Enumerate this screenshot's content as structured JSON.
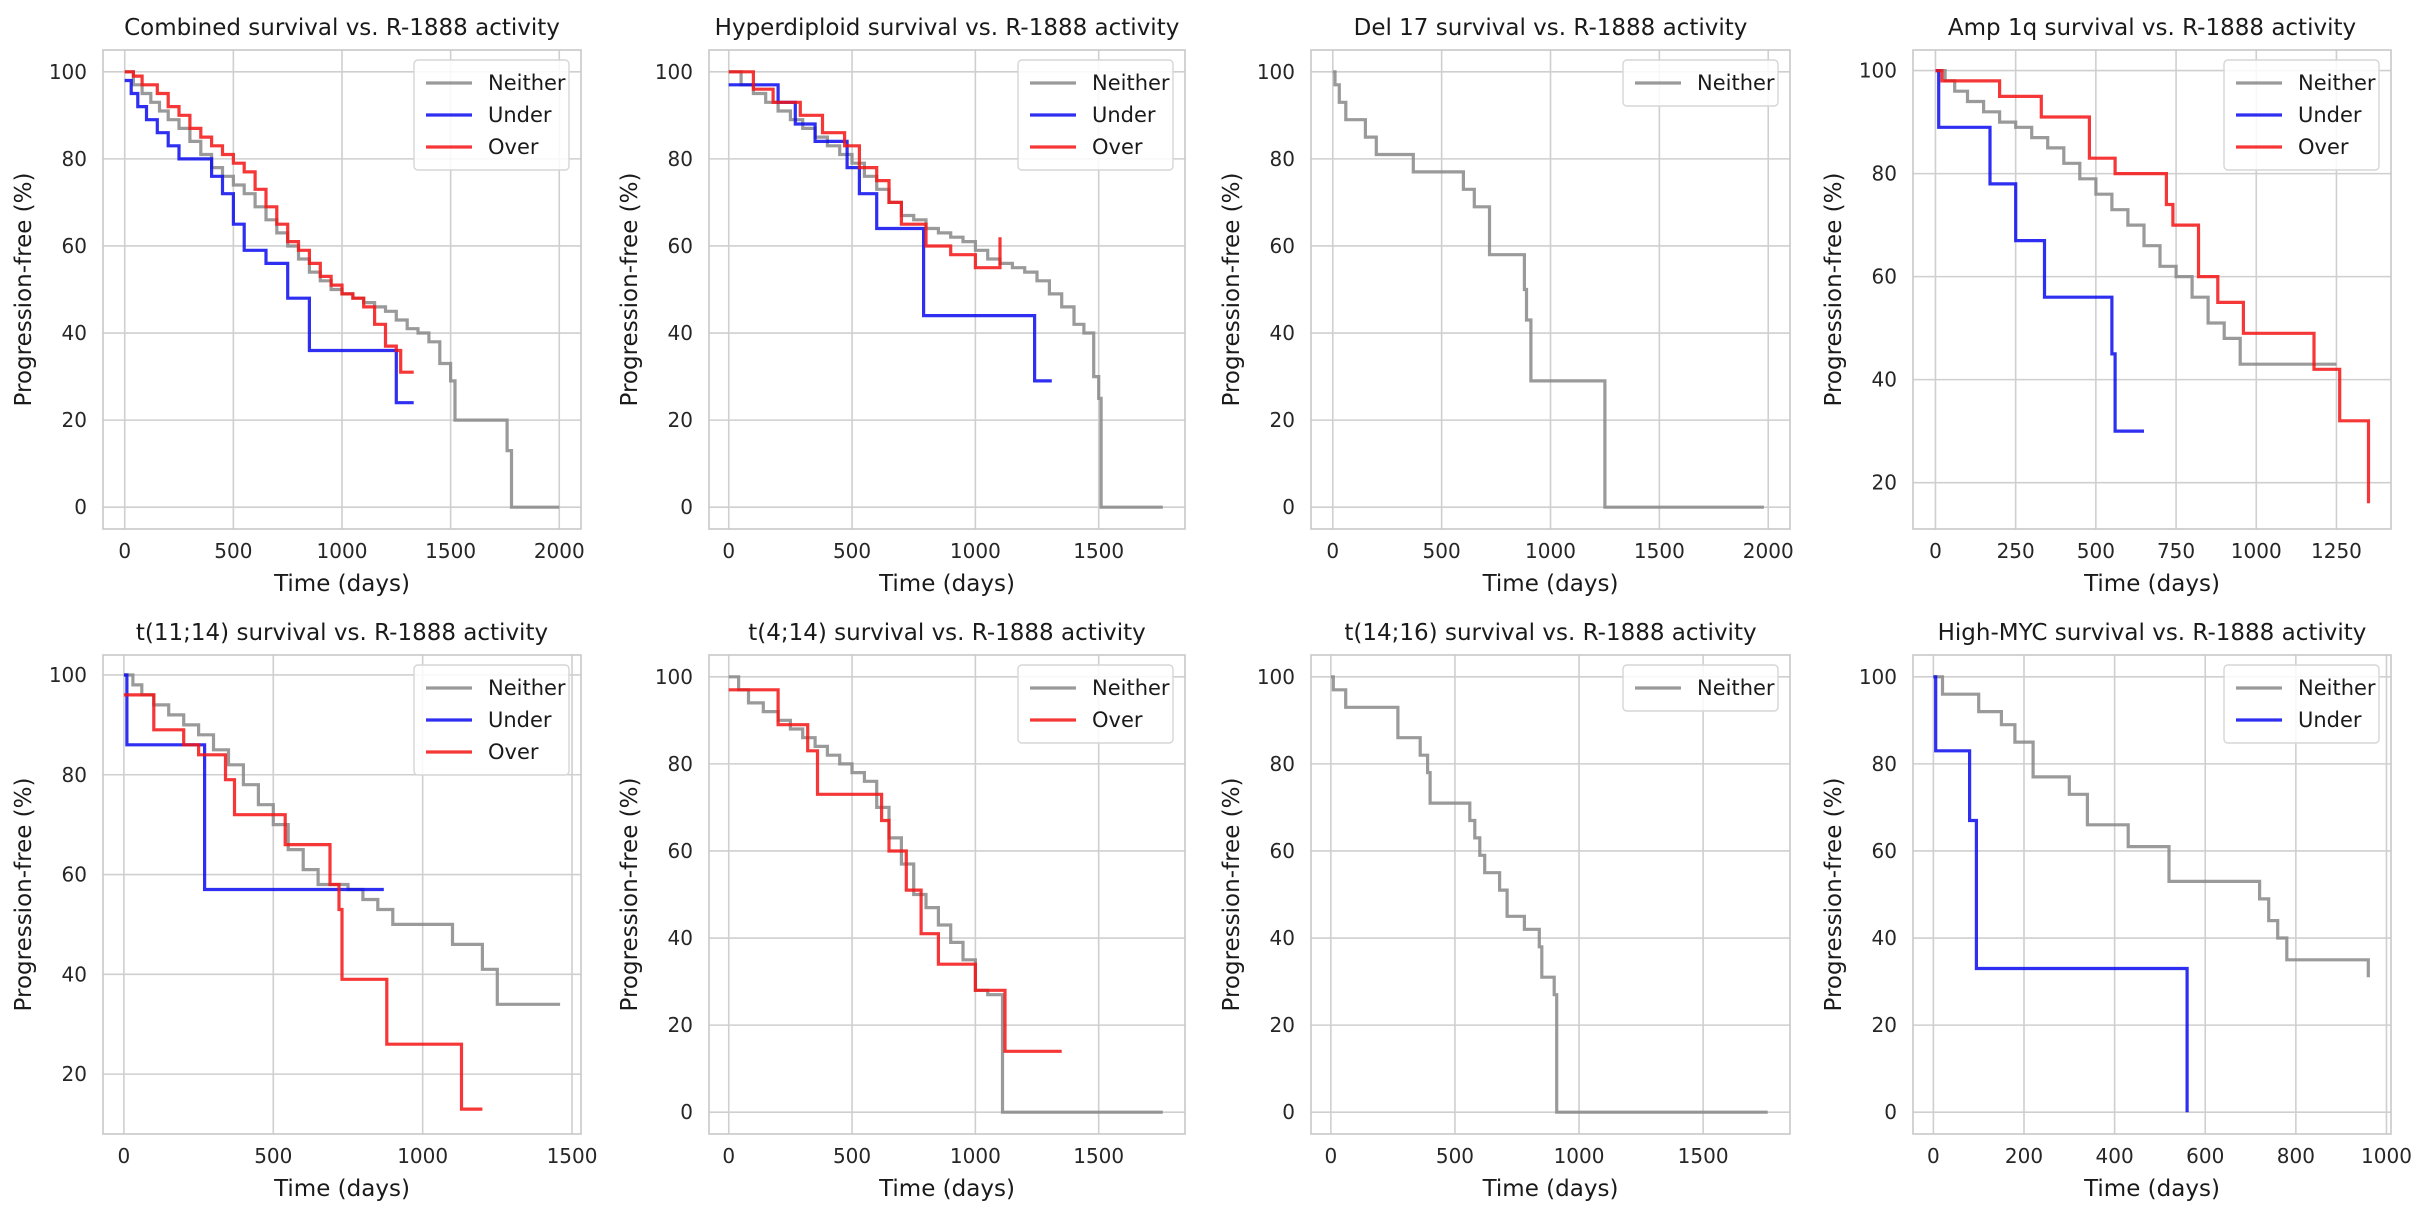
{
  "colors": {
    "Neither": "#888888",
    "Under": "#0a0af0",
    "Over": "#f51414"
  },
  "chart_data": [
    {
      "type": "line",
      "title": "Combined survival vs. R-1888 activity",
      "xlabel": "Time (days)",
      "ylabel": "Progression-free (%)",
      "xlim": [
        -100,
        2100
      ],
      "ylim": [
        -5,
        105
      ],
      "xticks": [
        0,
        500,
        1000,
        1500,
        2000
      ],
      "yticks": [
        0,
        20,
        40,
        60,
        80,
        100
      ],
      "legend": [
        "Neither",
        "Under",
        "Over"
      ],
      "series": [
        {
          "name": "Neither",
          "x": [
            0,
            40,
            80,
            120,
            160,
            200,
            250,
            300,
            350,
            400,
            450,
            500,
            550,
            600,
            650,
            700,
            750,
            800,
            850,
            900,
            950,
            1000,
            1050,
            1100,
            1150,
            1200,
            1250,
            1300,
            1350,
            1400,
            1450,
            1500,
            1520,
            1760,
            1780,
            2000
          ],
          "y": [
            100,
            97,
            95,
            93,
            91,
            89,
            87,
            84,
            81,
            78,
            76,
            74,
            72,
            69,
            66,
            63,
            60,
            57,
            54,
            52,
            50,
            49,
            48,
            47,
            46,
            45,
            43,
            41,
            40,
            38,
            33,
            29,
            20,
            13,
            0,
            0
          ]
        },
        {
          "name": "Under",
          "x": [
            0,
            30,
            60,
            100,
            150,
            200,
            250,
            300,
            400,
            450,
            500,
            550,
            650,
            750,
            850,
            1250,
            1330
          ],
          "y": [
            98,
            95,
            92,
            89,
            86,
            83,
            80,
            80,
            76,
            72,
            65,
            59,
            56,
            48,
            36,
            24,
            24
          ]
        },
        {
          "name": "Over",
          "x": [
            0,
            40,
            80,
            150,
            200,
            250,
            300,
            350,
            400,
            450,
            500,
            550,
            600,
            650,
            700,
            750,
            800,
            850,
            900,
            950,
            1000,
            1050,
            1100,
            1150,
            1200,
            1250,
            1270,
            1330
          ],
          "y": [
            100,
            99,
            97,
            95,
            92,
            90,
            87,
            85,
            83,
            81,
            79,
            77,
            73,
            69,
            65,
            61,
            59,
            56,
            53,
            51,
            49,
            48,
            46,
            42,
            37,
            36,
            31,
            31
          ]
        }
      ]
    },
    {
      "type": "line",
      "title": "Hyperdiploid survival vs. R-1888 activity",
      "xlabel": "Time (days)",
      "ylabel": "Progression-free (%)",
      "xlim": [
        -80,
        1850
      ],
      "ylim": [
        -5,
        105
      ],
      "xticks": [
        0,
        500,
        1000,
        1500
      ],
      "yticks": [
        0,
        20,
        40,
        60,
        80,
        100
      ],
      "legend": [
        "Neither",
        "Under",
        "Over"
      ],
      "series": [
        {
          "name": "Neither",
          "x": [
            0,
            50,
            100,
            150,
            200,
            250,
            300,
            350,
            400,
            450,
            500,
            550,
            600,
            650,
            700,
            750,
            800,
            850,
            900,
            950,
            1000,
            1050,
            1100,
            1150,
            1200,
            1250,
            1300,
            1350,
            1400,
            1440,
            1480,
            1500,
            1510,
            1520,
            1760
          ],
          "y": [
            100,
            97,
            95,
            93,
            91,
            89,
            87,
            85,
            83,
            81,
            79,
            76,
            73,
            70,
            67,
            66,
            64,
            63,
            62,
            61,
            59,
            57,
            56,
            55,
            54,
            52,
            49,
            46,
            42,
            40,
            30,
            25,
            0,
            0,
            0
          ]
        },
        {
          "name": "Under",
          "x": [
            0,
            120,
            200,
            270,
            350,
            480,
            530,
            600,
            700,
            790,
            1240,
            1310
          ],
          "y": [
            97,
            97,
            93,
            88,
            84,
            78,
            72,
            64,
            64,
            44,
            29,
            29
          ]
        },
        {
          "name": "Over",
          "x": [
            0,
            100,
            180,
            290,
            380,
            470,
            530,
            600,
            650,
            700,
            800,
            900,
            1000,
            1100
          ],
          "y": [
            100,
            96,
            93,
            90,
            86,
            83,
            78,
            75,
            70,
            65,
            60,
            58,
            55,
            62
          ]
        }
      ]
    },
    {
      "type": "line",
      "title": "Del 17 survival vs. R-1888 activity",
      "xlabel": "Time (days)",
      "ylabel": "Progression-free (%)",
      "xlim": [
        -100,
        2100
      ],
      "ylim": [
        -5,
        105
      ],
      "xticks": [
        0,
        500,
        1000,
        1500,
        2000
      ],
      "yticks": [
        0,
        20,
        40,
        60,
        80,
        100
      ],
      "legend": [
        "Neither"
      ],
      "series": [
        {
          "name": "Neither",
          "x": [
            0,
            10,
            30,
            60,
            150,
            200,
            370,
            600,
            650,
            720,
            880,
            890,
            910,
            1250,
            1980
          ],
          "y": [
            100,
            97,
            93,
            89,
            85,
            81,
            77,
            73,
            69,
            58,
            50,
            43,
            29,
            0,
            0
          ]
        }
      ]
    },
    {
      "type": "line",
      "title": "Amp 1q survival vs. R-1888 activity",
      "xlabel": "Time (days)",
      "ylabel": "Progression-free (%)",
      "xlim": [
        -70,
        1420
      ],
      "ylim": [
        11,
        104
      ],
      "xticks": [
        0,
        250,
        500,
        750,
        1000,
        1250
      ],
      "yticks": [
        20,
        40,
        60,
        80,
        100
      ],
      "legend": [
        "Neither",
        "Under",
        "Over"
      ],
      "series": [
        {
          "name": "Neither",
          "x": [
            0,
            30,
            60,
            100,
            150,
            200,
            250,
            300,
            350,
            400,
            450,
            500,
            550,
            600,
            650,
            700,
            750,
            800,
            850,
            900,
            950,
            1000,
            1250
          ],
          "y": [
            100,
            98,
            96,
            94,
            92,
            90,
            89,
            87,
            85,
            82,
            79,
            76,
            73,
            70,
            66,
            62,
            60,
            56,
            51,
            48,
            43,
            43,
            43
          ]
        },
        {
          "name": "Under",
          "x": [
            0,
            10,
            170,
            250,
            340,
            540,
            550,
            560,
            650
          ],
          "y": [
            100,
            89,
            78,
            67,
            56,
            56,
            45,
            30,
            30
          ]
        },
        {
          "name": "Over",
          "x": [
            0,
            20,
            200,
            330,
            480,
            560,
            720,
            740,
            820,
            880,
            960,
            1180,
            1260,
            1350
          ],
          "y": [
            100,
            98,
            95,
            91,
            83,
            80,
            74,
            70,
            60,
            55,
            49,
            42,
            32,
            16
          ]
        }
      ]
    },
    {
      "type": "line",
      "title": "t(11;14) survival vs. R-1888 activity",
      "xlabel": "Time (days)",
      "ylabel": "Progression-free (%)",
      "xlim": [
        -70,
        1530
      ],
      "ylim": [
        8,
        104
      ],
      "xticks": [
        0,
        500,
        1000,
        1500
      ],
      "yticks": [
        20,
        40,
        60,
        80,
        100
      ],
      "legend": [
        "Neither",
        "Under",
        "Over"
      ],
      "series": [
        {
          "name": "Neither",
          "x": [
            0,
            30,
            60,
            100,
            150,
            200,
            250,
            300,
            350,
            400,
            450,
            500,
            550,
            600,
            650,
            700,
            750,
            800,
            850,
            900,
            1000,
            1100,
            1200,
            1250,
            1460
          ],
          "y": [
            100,
            98,
            96,
            94,
            92,
            90,
            88,
            85,
            82,
            78,
            74,
            70,
            65,
            61,
            58,
            58,
            57,
            55,
            53,
            50,
            50,
            46,
            41,
            34,
            34
          ]
        },
        {
          "name": "Under",
          "x": [
            0,
            10,
            260,
            270,
            870
          ],
          "y": [
            100,
            86,
            86,
            57,
            57
          ]
        },
        {
          "name": "Over",
          "x": [
            0,
            100,
            200,
            250,
            280,
            340,
            370,
            480,
            540,
            690,
            720,
            720,
            730,
            880,
            1130,
            1200
          ],
          "y": [
            96,
            89,
            86,
            84,
            84,
            79,
            72,
            72,
            66,
            58,
            57,
            53,
            39,
            26,
            13,
            13
          ]
        }
      ]
    },
    {
      "type": "line",
      "title": "t(4;14) survival vs. R-1888 activity",
      "xlabel": "Time (days)",
      "ylabel": "Progression-free (%)",
      "xlim": [
        -80,
        1850
      ],
      "ylim": [
        -5,
        105
      ],
      "xticks": [
        0,
        500,
        1000,
        1500
      ],
      "yticks": [
        0,
        20,
        40,
        60,
        80,
        100
      ],
      "legend": [
        "Neither",
        "Over"
      ],
      "series": [
        {
          "name": "Neither",
          "x": [
            0,
            40,
            80,
            140,
            200,
            250,
            300,
            350,
            400,
            450,
            500,
            550,
            600,
            650,
            700,
            750,
            800,
            850,
            900,
            950,
            1000,
            1050,
            1100,
            1110,
            1760
          ],
          "y": [
            100,
            97,
            94,
            92,
            90,
            88,
            86,
            84,
            82,
            80,
            78,
            76,
            70,
            63,
            57,
            50,
            47,
            43,
            39,
            35,
            28,
            27,
            27,
            0,
            0
          ]
        },
        {
          "name": "Over",
          "x": [
            0,
            20,
            200,
            320,
            360,
            600,
            620,
            650,
            720,
            780,
            850,
            960,
            1000,
            1120,
            1350
          ],
          "y": [
            97,
            97,
            89,
            83,
            73,
            73,
            67,
            60,
            51,
            41,
            34,
            34,
            28,
            14,
            14
          ]
        }
      ]
    },
    {
      "type": "line",
      "title": "t(14;16) survival vs. R-1888 activity",
      "xlabel": "Time (days)",
      "ylabel": "Progression-free (%)",
      "xlim": [
        -80,
        1850
      ],
      "ylim": [
        -5,
        105
      ],
      "xticks": [
        0,
        500,
        1000,
        1500
      ],
      "yticks": [
        0,
        20,
        40,
        60,
        80,
        100
      ],
      "legend": [
        "Neither"
      ],
      "series": [
        {
          "name": "Neither",
          "x": [
            0,
            10,
            60,
            270,
            360,
            390,
            400,
            560,
            580,
            600,
            620,
            680,
            710,
            780,
            840,
            850,
            900,
            910,
            1760
          ],
          "y": [
            100,
            97,
            93,
            86,
            82,
            78,
            71,
            67,
            63,
            59,
            55,
            51,
            45,
            42,
            38,
            31,
            27,
            0,
            0
          ]
        }
      ]
    },
    {
      "type": "line",
      "title": "High-MYC survival vs. R-1888 activity",
      "xlabel": "Time (days)",
      "ylabel": "Progression-free (%)",
      "xlim": [
        -45,
        1010
      ],
      "ylim": [
        -5,
        105
      ],
      "xticks": [
        0,
        200,
        400,
        600,
        800,
        1000
      ],
      "yticks": [
        0,
        20,
        40,
        60,
        80,
        100
      ],
      "legend": [
        "Neither",
        "Under"
      ],
      "series": [
        {
          "name": "Neither",
          "x": [
            0,
            20,
            100,
            150,
            180,
            220,
            300,
            340,
            430,
            520,
            680,
            720,
            740,
            760,
            780,
            960
          ],
          "y": [
            100,
            96,
            92,
            89,
            85,
            77,
            73,
            66,
            61,
            53,
            53,
            49,
            44,
            40,
            35,
            31
          ]
        },
        {
          "name": "Under",
          "x": [
            0,
            5,
            80,
            95,
            555,
            560
          ],
          "y": [
            100,
            83,
            67,
            33,
            33,
            0
          ]
        }
      ]
    }
  ]
}
